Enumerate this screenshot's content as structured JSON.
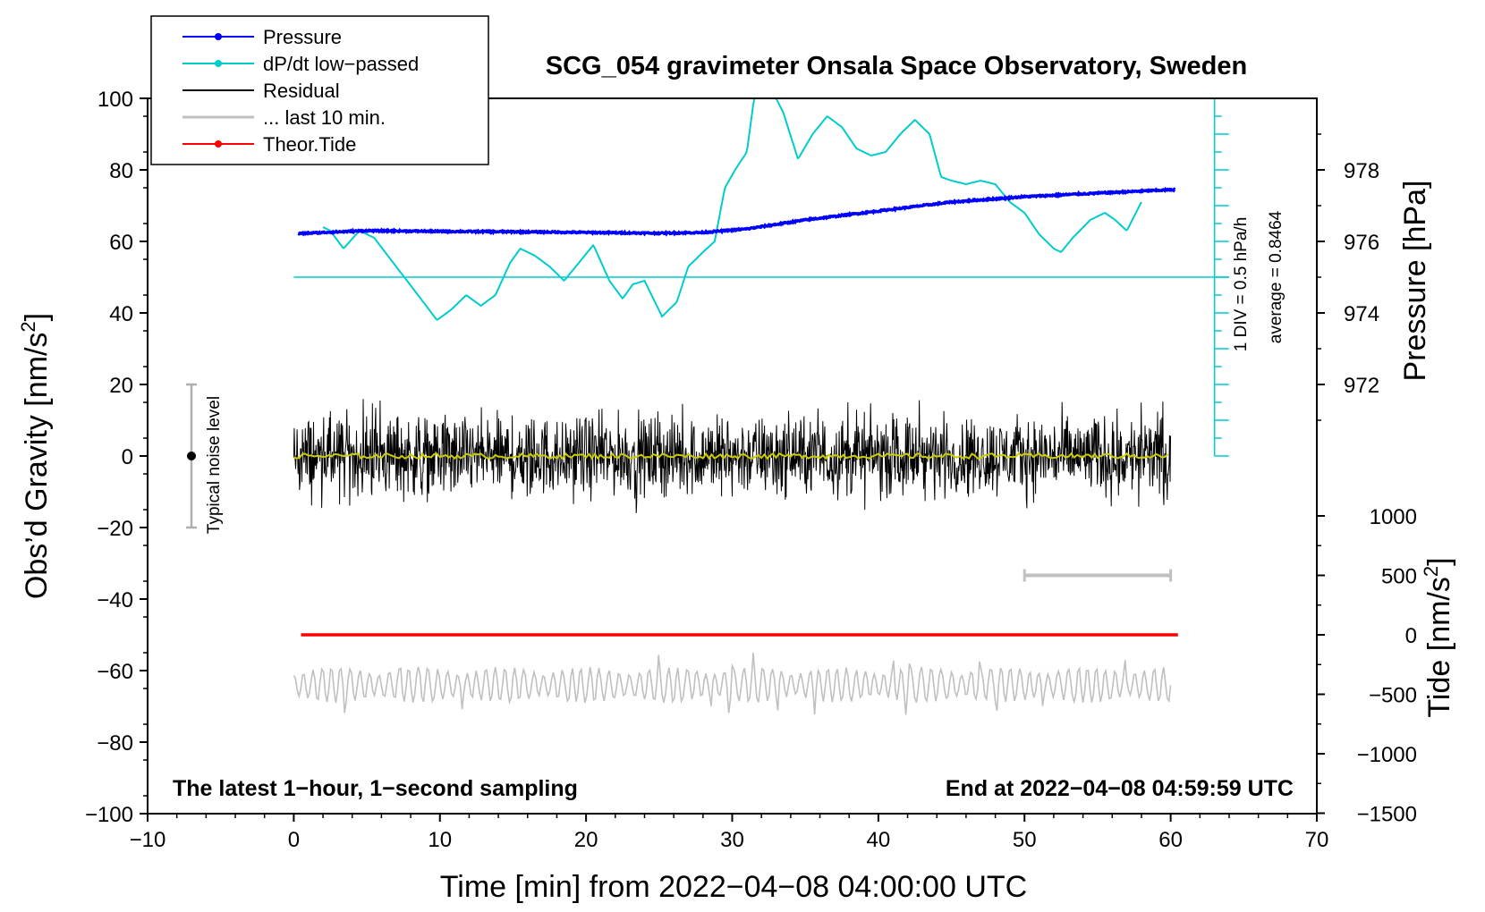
{
  "chart_data": {
    "type": "line",
    "title": "SCG_054 gravimeter Onsala Space Observatory, Sweden",
    "xlabel": "Time [min] from 2022−04−08 04:00:00 UTC",
    "xlim": [
      -10,
      70
    ],
    "xticks": [
      -10,
      0,
      10,
      20,
      30,
      40,
      50,
      60,
      70
    ],
    "xtick_labels": [
      "−10",
      "0",
      "10",
      "20",
      "30",
      "40",
      "50",
      "60",
      "70"
    ],
    "left_axis": {
      "label_main": "Obs’d Gravity [nm/s",
      "label_sup": "2",
      "label_close": "]",
      "ylim": [
        -100,
        100
      ],
      "ticks": [
        -100,
        -80,
        -60,
        -40,
        -20,
        0,
        20,
        40,
        60,
        80,
        100
      ],
      "tick_labels": [
        "−100",
        "−80",
        "−60",
        "−40",
        "−20",
        "0",
        "20",
        "40",
        "60",
        "80",
        "100"
      ]
    },
    "pressure_axis": {
      "label": "Pressure [hPa]",
      "ylim": [
        970,
        980
      ],
      "ticks": [
        972,
        974,
        976,
        978
      ],
      "tick_labels": [
        "972",
        "974",
        "976",
        "978"
      ]
    },
    "tide_axis": {
      "label_main": "Tide [nm/s",
      "label_sup": "2",
      "label_close": "]",
      "ylim": [
        -1500,
        1500
      ],
      "ticks": [
        -1500,
        -1000,
        -500,
        0,
        500,
        1000
      ],
      "tick_labels": [
        "−1500",
        "−1000",
        "−500",
        "0",
        "500",
        "1000"
      ]
    },
    "legend": {
      "position": "top-left",
      "entries": [
        {
          "label": "Pressure",
          "color": "#0000ff",
          "marker": true
        },
        {
          "label": "dP/dt low−passed",
          "color": "#00cccc",
          "marker": true
        },
        {
          "label": "Residual",
          "color": "#000000",
          "marker": false
        },
        {
          "label": "... last 10 min.",
          "color": "#c0c0c0",
          "marker": false
        },
        {
          "label": "Theor.Tide",
          "color": "#ff0000",
          "marker": true
        }
      ]
    },
    "series": [
      {
        "name": "Pressure",
        "axis": "pressure",
        "color": "#0000ff",
        "x": [
          0.3,
          5,
          10,
          15,
          20,
          25,
          28,
          31,
          35,
          40,
          45,
          50,
          55,
          60.3
        ],
        "y": [
          976.22,
          976.3,
          976.28,
          976.27,
          976.25,
          976.23,
          976.25,
          976.35,
          976.6,
          976.85,
          977.1,
          977.25,
          977.35,
          977.45
        ]
      },
      {
        "name": "dP/dt low−passed",
        "axis": "gravity",
        "color": "#00cccc",
        "x": [
          2,
          2.5,
          3.4,
          4.5,
          5.5,
          7,
          8.5,
          9.8,
          10.8,
          11.8,
          12.8,
          13.8,
          14.8,
          15.5,
          16.5,
          17.5,
          18.5,
          19.5,
          20.5,
          21.6,
          22.5,
          23.2,
          24,
          25.2,
          26.2,
          27,
          28,
          28.8,
          29.5,
          30.2,
          31,
          31.5,
          32.5,
          33.5,
          34.5,
          35.5,
          36.5,
          37.5,
          38.5,
          39.5,
          40.5,
          41.5,
          42.5,
          43.5,
          44.3,
          45,
          46,
          47,
          48,
          49,
          50,
          51,
          52,
          52.5,
          53.3,
          54.5,
          55.5,
          56.2,
          57,
          57.5,
          58
        ],
        "y": [
          64,
          63,
          58,
          63,
          61,
          53,
          45,
          38,
          41,
          45,
          42,
          45,
          54,
          58,
          56,
          53,
          49,
          54,
          59,
          49,
          44,
          48,
          49,
          39,
          43,
          53,
          57,
          60,
          75,
          80,
          85,
          100,
          104,
          96,
          83,
          90,
          95,
          92,
          86,
          84,
          85,
          90,
          94,
          90,
          78,
          77,
          76,
          77,
          76,
          71,
          68,
          62,
          58,
          57,
          61,
          66,
          68,
          66,
          63,
          67,
          71
        ]
      },
      {
        "name": "Residual",
        "axis": "gravity",
        "color": "#000000",
        "x_range": [
          0,
          60
        ],
        "description_level": 0,
        "amplitude_typical": 8,
        "amplitude_max": 16
      },
      {
        "name": "Residual smoothed",
        "axis": "gravity",
        "color": "#cccc00",
        "x_range": [
          0,
          60
        ],
        "description_level": 0
      },
      {
        "name": "... last 10 min.",
        "axis": "gravity",
        "color": "#c0c0c0",
        "x_range": [
          0,
          60
        ],
        "center": -64,
        "amplitude_typical": 5,
        "amplitude_max": 11
      },
      {
        "name": "Theor.Tide",
        "axis": "tide",
        "color": "#ff0000",
        "x": [
          0.5,
          60.5
        ],
        "y": [
          0,
          0
        ]
      }
    ],
    "reference_lines": [
      {
        "axis": "gravity",
        "y": 50,
        "x_from": 0,
        "x_to": 64,
        "color": "#00cccc"
      }
    ],
    "scale_bar_pressure": {
      "label": "1 DIV = 0.5 hPa/h",
      "x": 63,
      "y_from": 0,
      "y_to": 100,
      "div_count": 10,
      "color": "#00cccc"
    },
    "average_label": "average = 0.8464",
    "noise_bar": {
      "label": "Typical noise level",
      "x": -7,
      "y_from": -20,
      "y_to": 20,
      "center": 0
    },
    "last10_bar": {
      "axis": "tide",
      "x_from": 50,
      "x_to": 60,
      "y": 500,
      "color": "#c0c0c0"
    },
    "footer_left": "The latest 1−hour, 1−second sampling",
    "footer_right": "End at 2022−04−08 04:59:59 UTC"
  }
}
